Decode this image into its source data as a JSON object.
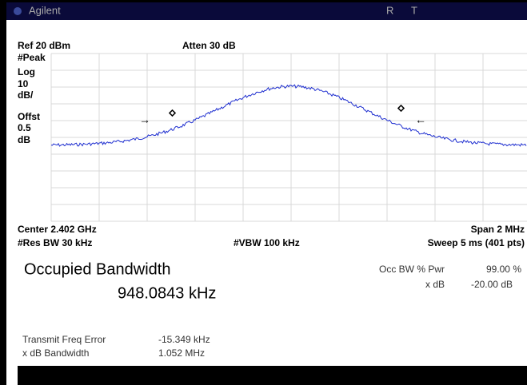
{
  "header": {
    "brand": "Agilent",
    "indicators": [
      "R",
      "T"
    ]
  },
  "display": {
    "ref": "Ref 20 dBm",
    "atten": "Atten 30 dB",
    "scale": [
      "#Peak",
      "Log",
      "10",
      "dB/",
      "Offst",
      "0.5",
      "dB"
    ],
    "center": "Center 2.402 GHz",
    "span": "Span 2 MHz",
    "res_bw": "#Res BW 30 kHz",
    "vbw": "#VBW 100 kHz",
    "sweep": "Sweep 5 ms (401 pts)"
  },
  "results": {
    "title": "Occupied Bandwidth",
    "value": "948.0843 kHz",
    "params": [
      {
        "label": "Occ BW % Pwr",
        "value": "99.00 %"
      },
      {
        "label": "x dB",
        "value": "-20.00 dB"
      }
    ],
    "metrics": [
      {
        "label": "Transmit Freq Error",
        "value": "-15.349 kHz"
      },
      {
        "label": "x dB Bandwidth",
        "value": "1.052 MHz"
      }
    ]
  }
}
